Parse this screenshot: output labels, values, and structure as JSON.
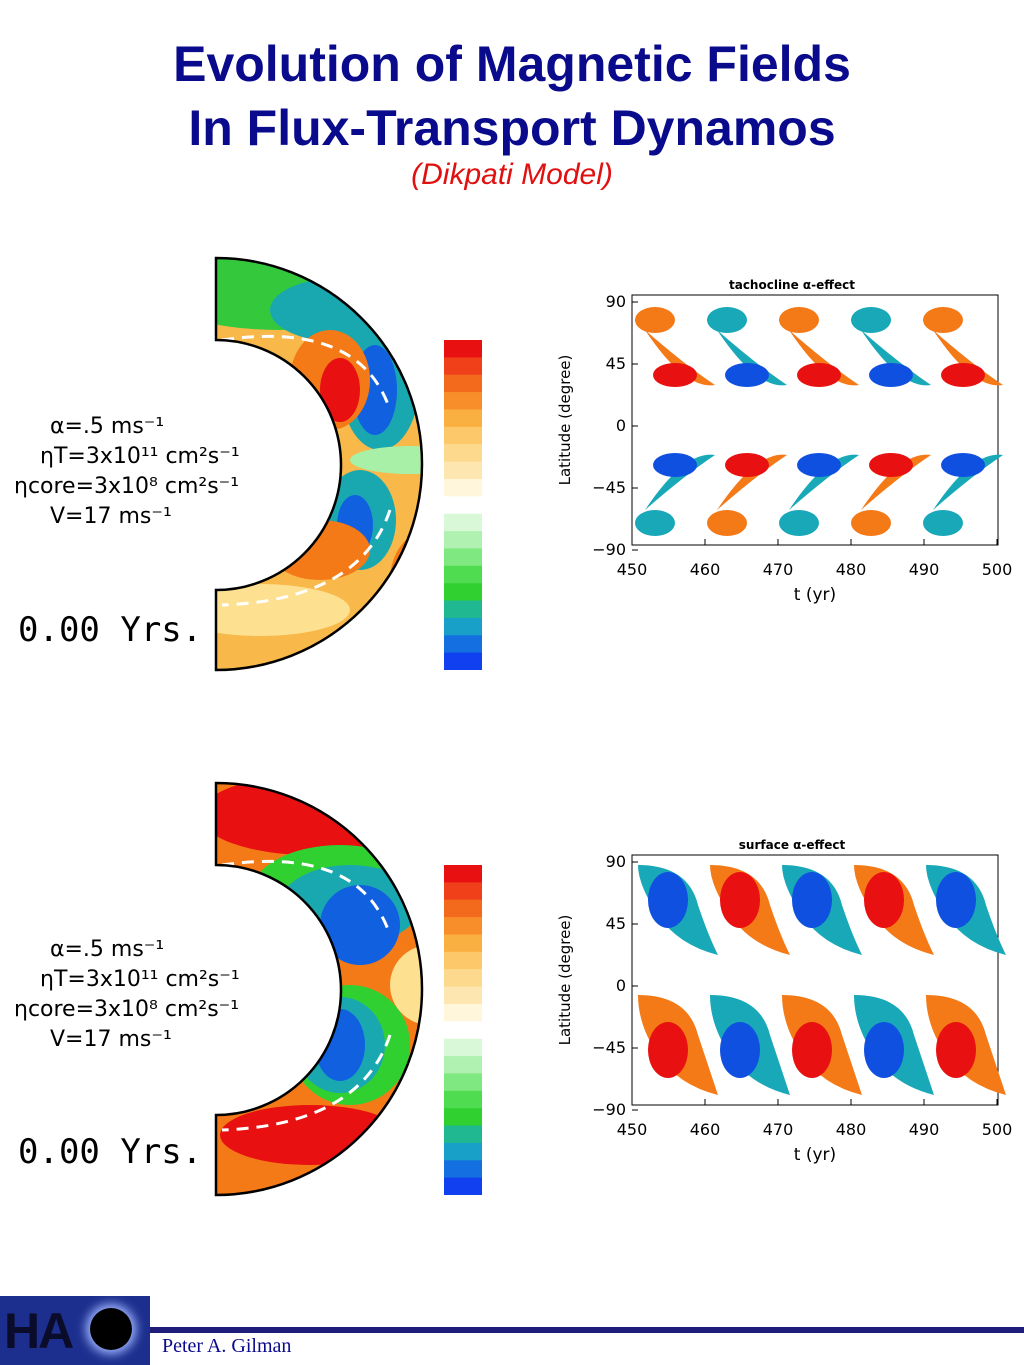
{
  "title_line1": "Evolution of Magnetic Fields",
  "title_line2": "In Flux-Transport Dynamos",
  "subtitle": "(Dikpati Model)",
  "footer": {
    "author": "Peter A. Gilman",
    "logo_text": "HA"
  },
  "colors": {
    "title": "#0a0a8c",
    "subtitle": "#e01010",
    "red": "#e81010",
    "orange": "#f47a18",
    "blue": "#1050e0",
    "teal": "#18a8b8",
    "green": "#30d030"
  },
  "panels": [
    {
      "params": [
        "α=.5 ms⁻¹",
        "ηT=3x10¹¹ cm²s⁻¹",
        "ηcore=3x10⁸ cm²s⁻¹",
        "V=17 ms⁻¹"
      ],
      "time": "0.00 Yrs.",
      "plot_title": "tachocline α-effect",
      "ylabel": "Latitude (degree)",
      "xlabel": "t (yr)",
      "yticks": [
        "90",
        "45",
        "0",
        "−45",
        "−90"
      ],
      "xticks": [
        "450",
        "460",
        "470",
        "480",
        "490",
        "500"
      ]
    },
    {
      "params": [
        "α=.5 ms⁻¹",
        "ηT=3x10¹¹ cm²s⁻¹",
        "ηcore=3x10⁸ cm²s⁻¹",
        "V=17 ms⁻¹"
      ],
      "time": "0.00 Yrs.",
      "plot_title": "surface α-effect",
      "ylabel": "Latitude (degree)",
      "xlabel": "t (yr)",
      "yticks": [
        "90",
        "45",
        "0",
        "−45",
        "−90"
      ],
      "xticks": [
        "450",
        "460",
        "470",
        "480",
        "490",
        "500"
      ]
    }
  ]
}
